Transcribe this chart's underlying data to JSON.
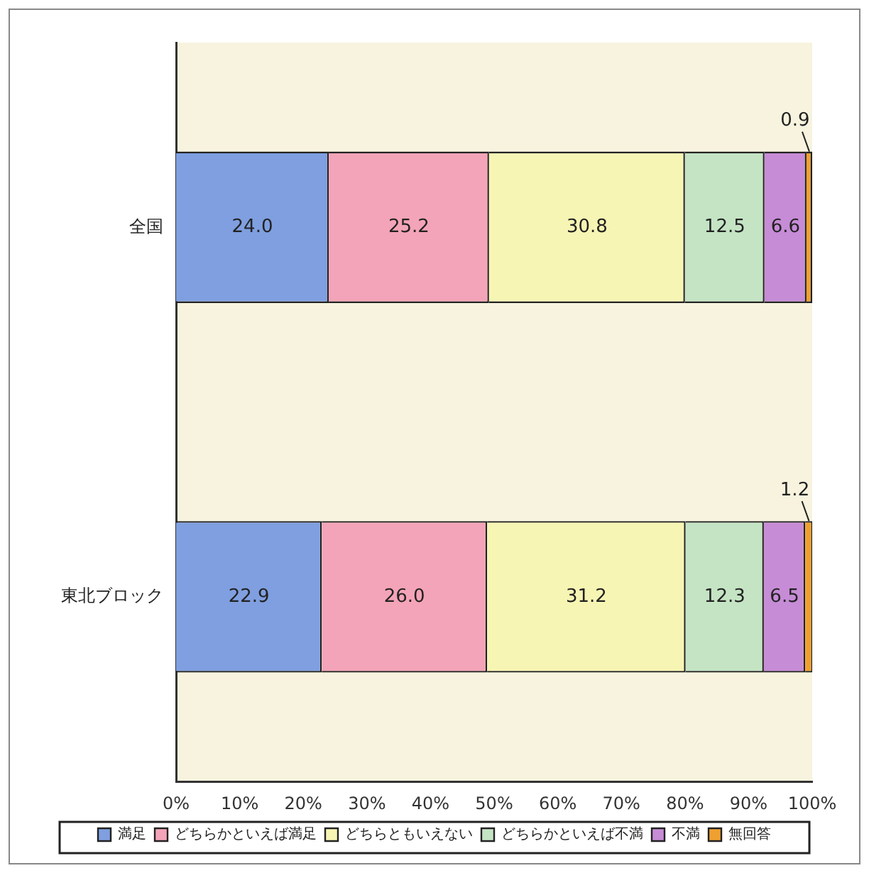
{
  "chart_data": {
    "type": "bar",
    "orientation": "horizontal",
    "stacked": true,
    "categories": [
      "全国",
      "東北ブロック"
    ],
    "series": [
      {
        "name": "満足",
        "color": "#7f9fe0",
        "values": [
          24.0,
          22.9
        ],
        "value_labels": [
          "24.0",
          "22.9"
        ]
      },
      {
        "name": "どちらかといえば満足",
        "color": "#f4a4b8",
        "values": [
          25.2,
          26.0
        ],
        "value_labels": [
          "25.2",
          "26.0"
        ]
      },
      {
        "name": "どちらともいえない",
        "color": "#f7f5b4",
        "values": [
          30.8,
          31.2
        ],
        "value_labels": [
          "30.8",
          "31.2"
        ]
      },
      {
        "name": "どちらかといえば不満",
        "color": "#c4e4c4",
        "values": [
          12.5,
          12.3
        ],
        "value_labels": [
          "12.5",
          "12.3"
        ]
      },
      {
        "name": "不満",
        "color": "#c68cd6",
        "values": [
          6.6,
          6.5
        ],
        "value_labels": [
          "6.6",
          "6.5"
        ]
      },
      {
        "name": "無回答",
        "color": "#f0a030",
        "values": [
          0.9,
          1.2
        ],
        "value_labels": [
          "0.9",
          "1.2"
        ]
      }
    ],
    "xlim": [
      0,
      100
    ],
    "xticks": [
      {
        "value": 0,
        "label": "0%"
      },
      {
        "value": 10,
        "label": "10%"
      },
      {
        "value": 20,
        "label": "20%"
      },
      {
        "value": 30,
        "label": "30%"
      },
      {
        "value": 40,
        "label": "40%"
      },
      {
        "value": 50,
        "label": "50%"
      },
      {
        "value": 60,
        "label": "60%"
      },
      {
        "value": 70,
        "label": "70%"
      },
      {
        "value": 80,
        "label": "80%"
      },
      {
        "value": 90,
        "label": "90%"
      },
      {
        "value": 100,
        "label": "100%"
      }
    ],
    "grid": false,
    "legend": "bottom"
  }
}
